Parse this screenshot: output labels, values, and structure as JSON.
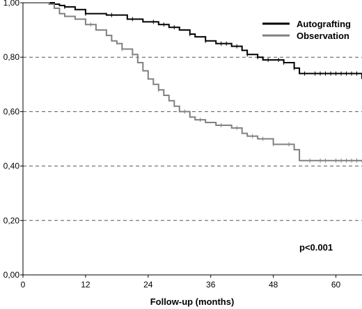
{
  "chart_data": {
    "type": "line",
    "title": "",
    "xlabel": "Follow-up (months)",
    "ylabel": "",
    "xlim": [
      0,
      65
    ],
    "ylim": [
      0,
      1
    ],
    "x_ticks": [
      0,
      12,
      24,
      36,
      48,
      60
    ],
    "x_tick_labels": [
      "0",
      "12",
      "24",
      "36",
      "48",
      "60"
    ],
    "y_ticks": [
      0,
      0.2,
      0.4,
      0.6,
      0.8,
      1.0
    ],
    "y_tick_labels": [
      "0,00",
      "0,20",
      "0,40",
      "0,60",
      "0,80",
      "1,00"
    ],
    "gridlines_y": [
      0.2,
      0.4,
      0.6,
      0.8
    ],
    "grid": "dashed horizontal",
    "step": true,
    "legend_position": "top-right",
    "annotation": "p<0.001",
    "series": [
      {
        "name": "Autografting",
        "color": "#000000",
        "x": [
          0,
          6,
          7,
          8,
          10,
          12,
          16,
          20,
          23,
          26,
          28,
          30,
          32,
          33,
          35,
          37,
          40,
          42,
          43,
          45,
          46,
          50,
          52,
          53,
          65
        ],
        "y": [
          1.0,
          0.995,
          0.99,
          0.985,
          0.975,
          0.96,
          0.955,
          0.94,
          0.93,
          0.92,
          0.91,
          0.9,
          0.885,
          0.875,
          0.86,
          0.85,
          0.84,
          0.825,
          0.81,
          0.8,
          0.79,
          0.78,
          0.76,
          0.74,
          0.72
        ],
        "censor_x": [
          8,
          12,
          17,
          21,
          25,
          27,
          29,
          32,
          35,
          38,
          39,
          41,
          43,
          45,
          47,
          49,
          50,
          52,
          54,
          56,
          57,
          58,
          59,
          60,
          61,
          62,
          63,
          64
        ]
      },
      {
        "name": "Observation",
        "color": "#808080",
        "x": [
          0,
          5,
          6,
          7,
          8,
          10,
          12,
          14,
          16,
          17,
          18,
          19,
          21,
          22,
          23,
          24,
          25,
          26,
          27,
          28,
          29,
          30,
          32,
          33,
          35,
          37,
          40,
          42,
          43,
          45,
          48,
          52,
          53,
          65
        ],
        "y": [
          1.0,
          0.995,
          0.98,
          0.96,
          0.95,
          0.94,
          0.92,
          0.9,
          0.88,
          0.86,
          0.85,
          0.83,
          0.81,
          0.78,
          0.75,
          0.72,
          0.7,
          0.68,
          0.66,
          0.64,
          0.62,
          0.6,
          0.58,
          0.57,
          0.56,
          0.55,
          0.54,
          0.52,
          0.51,
          0.5,
          0.48,
          0.46,
          0.42,
          0.415
        ],
        "censor_x": [
          13,
          19,
          21,
          26,
          31,
          34,
          38,
          41,
          44,
          46,
          48,
          51,
          55,
          57,
          58,
          60,
          61,
          62,
          63,
          64
        ]
      }
    ]
  }
}
